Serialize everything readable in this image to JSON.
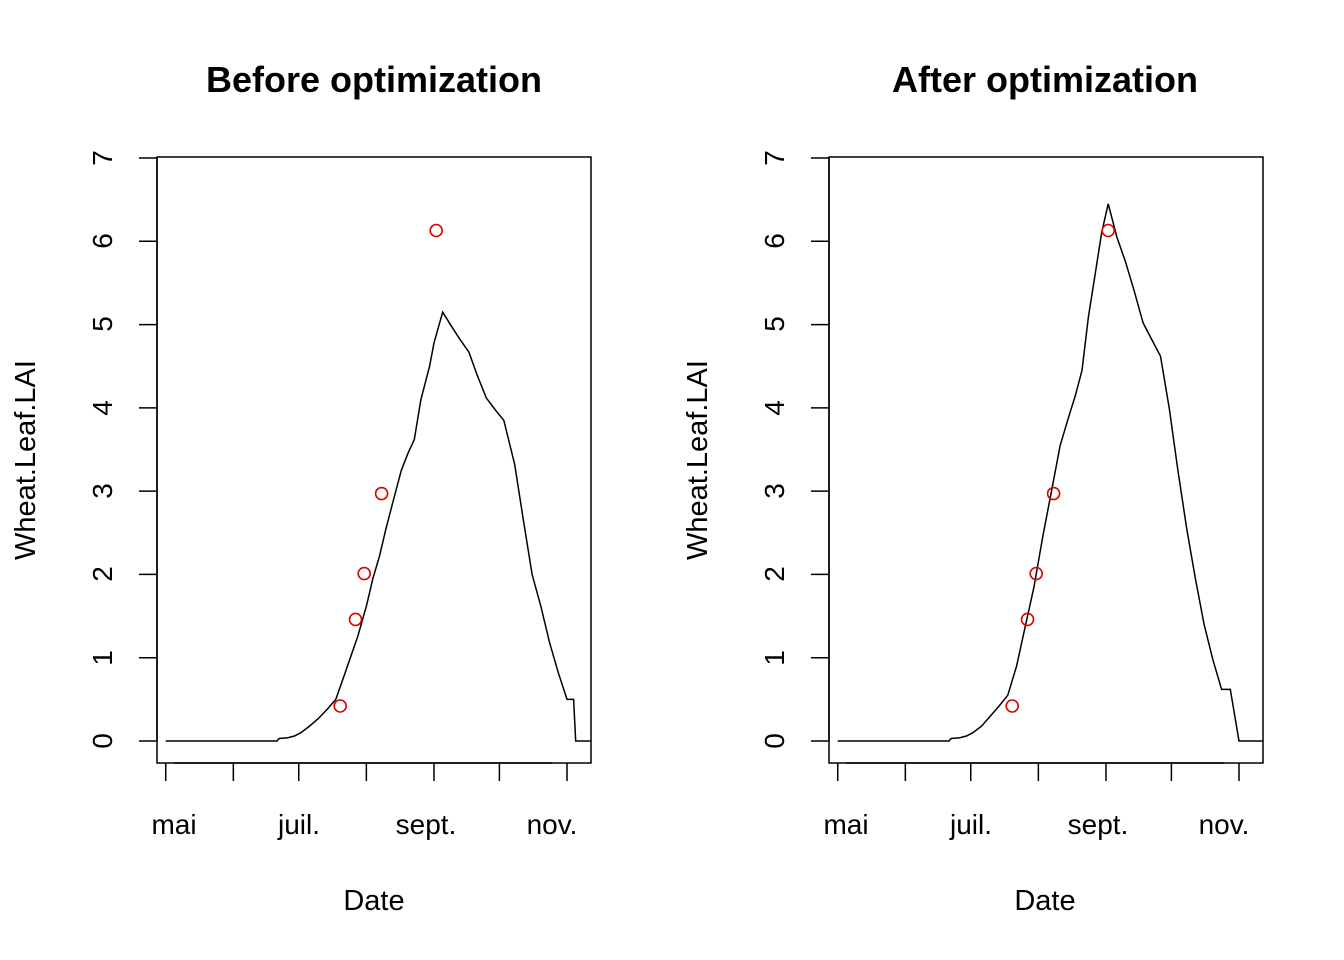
{
  "chart_data": [
    {
      "type": "line",
      "title": "Before optimization",
      "xlabel": "Date",
      "ylabel": "Wheat.Leaf.LAI",
      "x_ticks": [
        "mai",
        "juil.",
        "sept.",
        "nov."
      ],
      "ylim": [
        0,
        7
      ],
      "y_ticks": [
        "0",
        "1",
        "2",
        "3",
        "4",
        "5",
        "6",
        "7"
      ],
      "grid": false,
      "series": [
        {
          "kind": "line",
          "color": "#000000",
          "x": [
            "2019-05-01",
            "2019-05-16",
            "2019-06-01",
            "2019-06-16",
            "2019-06-21",
            "2019-06-22",
            "2019-06-26",
            "2019-06-29",
            "2019-07-02",
            "2019-07-06",
            "2019-07-10",
            "2019-07-14",
            "2019-07-18",
            "2019-07-22",
            "2019-07-24",
            "2019-07-28",
            "2019-08-01",
            "2019-08-04",
            "2019-08-07",
            "2019-08-10",
            "2019-08-13",
            "2019-08-17",
            "2019-08-20",
            "2019-08-23",
            "2019-08-26",
            "2019-08-30",
            "2019-09-01",
            "2019-09-05",
            "2019-09-09",
            "2019-09-13",
            "2019-09-17",
            "2019-09-21",
            "2019-09-25",
            "2019-09-29",
            "2019-10-03",
            "2019-10-08",
            "2019-10-12",
            "2019-10-16",
            "2019-10-20",
            "2019-10-24",
            "2019-10-28",
            "2019-11-01",
            "2019-11-04",
            "2019-11-05",
            "2019-11-12"
          ],
          "y": [
            0,
            0,
            0,
            0,
            0,
            0.03,
            0.04,
            0.06,
            0.1,
            0.18,
            0.27,
            0.38,
            0.5,
            0.8,
            0.95,
            1.25,
            1.62,
            1.95,
            2.22,
            2.55,
            2.85,
            3.25,
            3.45,
            3.62,
            4.1,
            4.5,
            4.78,
            5.15,
            4.98,
            4.82,
            4.67,
            4.38,
            4.12,
            3.98,
            3.85,
            3.32,
            2.65,
            2.0,
            1.62,
            1.18,
            0.82,
            0.5,
            0.5,
            0,
            0
          ]
        },
        {
          "kind": "points",
          "color": "#dd0000",
          "x": [
            "2019-07-20",
            "2019-07-27",
            "2019-07-31",
            "2019-08-08",
            "2019-09-02"
          ],
          "y": [
            0.42,
            1.46,
            2.01,
            2.97,
            6.13
          ]
        }
      ]
    },
    {
      "type": "line",
      "title": "After optimization",
      "xlabel": "Date",
      "ylabel": "Wheat.Leaf.LAI",
      "x_ticks": [
        "mai",
        "juil.",
        "sept.",
        "nov."
      ],
      "ylim": [
        0,
        7
      ],
      "y_ticks": [
        "0",
        "1",
        "2",
        "3",
        "4",
        "5",
        "6",
        "7"
      ],
      "grid": false,
      "series": [
        {
          "kind": "line",
          "color": "#000000",
          "x": [
            "2019-05-01",
            "2019-05-16",
            "2019-06-01",
            "2019-06-16",
            "2019-06-21",
            "2019-06-22",
            "2019-06-26",
            "2019-06-29",
            "2019-07-02",
            "2019-07-06",
            "2019-07-10",
            "2019-07-14",
            "2019-07-18",
            "2019-07-22",
            "2019-07-26",
            "2019-07-30",
            "2019-08-03",
            "2019-08-07",
            "2019-08-11",
            "2019-08-15",
            "2019-08-18",
            "2019-08-21",
            "2019-08-24",
            "2019-08-27",
            "2019-08-30",
            "2019-09-02",
            "2019-09-06",
            "2019-09-10",
            "2019-09-14",
            "2019-09-18",
            "2019-09-22",
            "2019-09-26",
            "2019-09-30",
            "2019-10-04",
            "2019-10-08",
            "2019-10-12",
            "2019-10-16",
            "2019-10-20",
            "2019-10-24",
            "2019-10-28",
            "2019-11-01",
            "2019-11-04",
            "2019-11-05",
            "2019-11-12"
          ],
          "y": [
            0,
            0,
            0,
            0,
            0,
            0.03,
            0.04,
            0.06,
            0.1,
            0.18,
            0.3,
            0.42,
            0.55,
            0.9,
            1.38,
            1.85,
            2.45,
            3.0,
            3.55,
            3.9,
            4.15,
            4.45,
            5.1,
            5.6,
            6.1,
            6.45,
            6.05,
            5.75,
            5.4,
            5.02,
            4.82,
            4.62,
            4.0,
            3.25,
            2.55,
            1.95,
            1.4,
            0.98,
            0.62,
            0.62,
            0,
            0,
            0,
            0
          ]
        },
        {
          "kind": "points",
          "color": "#dd0000",
          "x": [
            "2019-07-20",
            "2019-07-27",
            "2019-07-31",
            "2019-08-08",
            "2019-09-02"
          ],
          "y": [
            0.42,
            1.46,
            2.01,
            2.97,
            6.13
          ]
        }
      ]
    }
  ]
}
